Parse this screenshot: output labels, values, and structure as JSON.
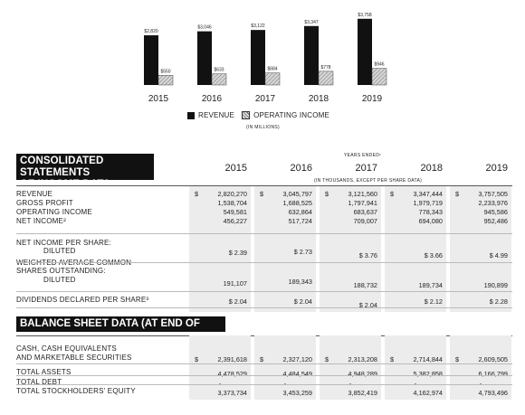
{
  "chart_data": {
    "type": "bar",
    "categories": [
      "2015",
      "2016",
      "2017",
      "2018",
      "2019"
    ],
    "series": [
      {
        "name": "REVENUE",
        "values": [
          2820,
          3046,
          3122,
          3347,
          3758
        ],
        "labels": [
          "$2,820",
          "$3,046",
          "$3,122",
          "$3,347",
          "$3,758"
        ],
        "color": "#111111"
      },
      {
        "name": "OPERATING INCOME",
        "values": [
          550,
          633,
          684,
          778,
          946
        ],
        "labels": [
          "$550",
          "$633",
          "$684",
          "$778",
          "$946"
        ],
        "color": "#bbbbbb"
      }
    ],
    "units_note": "(IN MILLIONS)",
    "ylim": [
      0,
      3900
    ],
    "legend_position": "bottom",
    "grid": false
  },
  "legend": {
    "revenue": "REVENUE",
    "operating_income": "OPERATING INCOME",
    "units": "(IN MILLIONS)"
  },
  "income": {
    "title_line1": "CONSOLIDATED STATEMENTS",
    "title_line2": "OF INCOME DATA:",
    "years_ended": "YEARS ENDED¹",
    "thousands_note": "(IN THOUSANDS, EXCEPT PER SHARE DATA)",
    "years": [
      "2015",
      "2016",
      "2017",
      "2018",
      "2019"
    ],
    "rows": [
      {
        "label": "REVENUE",
        "indent": false,
        "dollar": true,
        "values": [
          "2,820,270",
          "3,045,797",
          "3,121,560",
          "3,347,444",
          "3,757,505"
        ]
      },
      {
        "label": "GROSS PROFIT",
        "indent": false,
        "dollar": false,
        "values": [
          "1,538,704",
          "1,688,525",
          "1,797,941",
          "1,979,719",
          "2,233,976"
        ]
      },
      {
        "label": "OPERATING INCOME",
        "indent": false,
        "dollar": false,
        "values": [
          "549,581",
          "632,864",
          "683,637",
          "778,343",
          "945,586"
        ]
      },
      {
        "label": "NET INCOME²",
        "indent": false,
        "dollar": false,
        "values": [
          "456,227",
          "517,724",
          "709,007",
          "694,080",
          "952,486"
        ]
      },
      {
        "label": "NET INCOME PER SHARE:",
        "indent": false,
        "dollar": false,
        "values": []
      },
      {
        "label": "DILUTED",
        "indent": true,
        "dollar": false,
        "values": [
          "$ 2.39",
          "$ 2.73",
          "$ 3.76",
          "$ 3.66",
          "$ 4.99"
        ]
      },
      {
        "label": "WEIGHTED AVERAGE COMMON",
        "indent": false,
        "dollar": false,
        "values": []
      },
      {
        "label": "SHARES OUTSTANDING:",
        "indent": false,
        "dollar": false,
        "values": []
      },
      {
        "label": "DILUTED",
        "indent": true,
        "dollar": false,
        "values": [
          "191,107",
          "189,343",
          "188,732",
          "189,734",
          "190,899"
        ]
      },
      {
        "label": "DIVIDENDS DECLARED PER SHARE³",
        "indent": false,
        "dollar": false,
        "values": [
          "$ 2.04",
          "$ 2.04",
          "$ 2.04",
          "$ 2.12",
          "$ 2.28"
        ]
      }
    ]
  },
  "balance": {
    "title": "BALANCE SHEET DATA (AT END OF PERIOD):",
    "rows": [
      {
        "label": "CASH, CASH EQUIVALENTS",
        "dollar": false,
        "values": []
      },
      {
        "label": "AND MARKETABLE SECURITIES",
        "dollar": true,
        "values": [
          "2,391,618",
          "2,327,120",
          "2,313,208",
          "2,714,844",
          "2,609,505"
        ]
      },
      {
        "label": "TOTAL ASSETS",
        "dollar": false,
        "values": [
          "4,478,529",
          "4,484,549",
          "4,948,289",
          "5,382,858",
          "6,166,799"
        ]
      },
      {
        "label": "TOTAL DEBT",
        "dollar": false,
        "values": [
          "-",
          "-",
          "-",
          "-",
          "-"
        ]
      },
      {
        "label": "TOTAL STOCKHOLDERS' EQUITY",
        "dollar": false,
        "values": [
          "3,373,734",
          "3,453,259",
          "3,852,419",
          "4,162,974",
          "4,793,496"
        ]
      }
    ]
  }
}
